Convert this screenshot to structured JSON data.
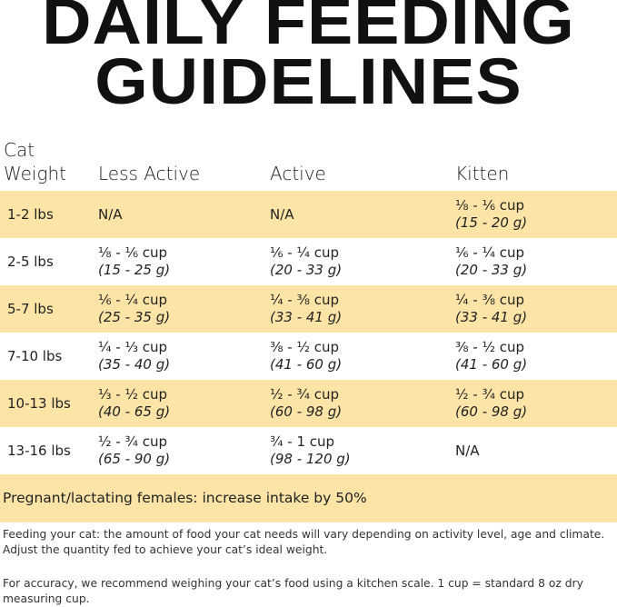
{
  "title": "DAILY FEEDING GUIDELINES",
  "headers": [
    "Cat\nWeight",
    "Less Active",
    "Active",
    "Kitten"
  ],
  "rows": [
    {
      "weight": "1-2 lbs",
      "cells": [
        {
          "cup": "N/A",
          "g": ""
        },
        {
          "cup": "N/A",
          "g": ""
        },
        {
          "cup": "⅛ - ⅙ cup",
          "g": "(15 - 20 g)"
        }
      ]
    },
    {
      "weight": "2-5 lbs",
      "cells": [
        {
          "cup": "⅛ - ⅙ cup",
          "g": "(15 - 25 g)"
        },
        {
          "cup": "⅙ - ¼ cup",
          "g": "(20 - 33 g)"
        },
        {
          "cup": "⅙ - ¼ cup",
          "g": "(20 - 33 g)"
        }
      ]
    },
    {
      "weight": "5-7 lbs",
      "cells": [
        {
          "cup": "⅙ - ¼ cup",
          "g": "(25 - 35 g)"
        },
        {
          "cup": "¼ - ⅜ cup",
          "g": "(33 - 41 g)"
        },
        {
          "cup": "¼ - ⅜ cup",
          "g": "(33 - 41 g)"
        }
      ]
    },
    {
      "weight": "7-10 lbs",
      "cells": [
        {
          "cup": "¼ - ⅓ cup",
          "g": "(35 - 40 g)"
        },
        {
          "cup": "⅜ - ½ cup",
          "g": "(41 - 60 g)"
        },
        {
          "cup": "⅜ - ½ cup",
          "g": "(41 - 60 g)"
        }
      ]
    },
    {
      "weight": "10-13 lbs",
      "cells": [
        {
          "cup": "⅓ - ½ cup",
          "g": "(40 - 65 g)"
        },
        {
          "cup": "½ - ¾ cup",
          "g": "(60 - 98 g)"
        },
        {
          "cup": "½ - ¾ cup",
          "g": "(60 - 98 g)"
        }
      ]
    },
    {
      "weight": "13-16 lbs",
      "cells": [
        {
          "cup": "½ - ¾ cup",
          "g": "(65 - 90 g)"
        },
        {
          "cup": "¾ - 1 cup",
          "g": "(98 - 120 g)"
        },
        {
          "cup": "N/A",
          "g": ""
        }
      ]
    }
  ],
  "pregnant": "Pregnant/lactating females: increase intake by 50%",
  "notes": [
    "Feeding your cat: the amount of food your cat needs will vary depending on activity level, age and climate. Adjust the quantity fed to achieve your cat’s ideal weight.",
    "For accuracy, we recommend weighing your cat’s food using a kitchen scale. 1 cup = standard 8 oz dry measuring cup."
  ],
  "colors": {
    "highlight": "#fbe4a6"
  }
}
